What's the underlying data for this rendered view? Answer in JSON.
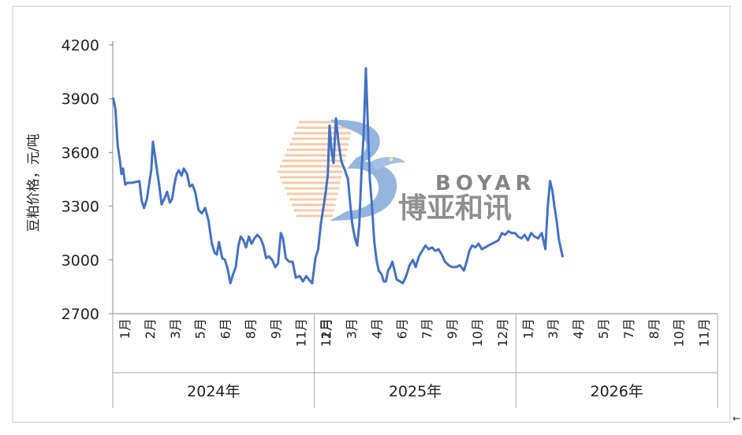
{
  "chart_data": {
    "type": "line",
    "title": "",
    "xlabel": "",
    "ylabel": "豆粕价格，元/吨",
    "ylim": [
      2700,
      4200
    ],
    "yticks": [
      2700,
      3000,
      3300,
      3600,
      3900,
      4200
    ],
    "grid": false,
    "legend": "none",
    "line_color": "#4472C4",
    "years": [
      {
        "label": "2024年",
        "months": [
          "1月",
          "2月",
          "3月",
          "5月",
          "6月",
          "8月",
          "9月",
          "11月",
          "12月"
        ]
      },
      {
        "label": "2025年",
        "months": [
          "1月",
          "3月",
          "4月",
          "6月",
          "7月",
          "9月",
          "10月",
          "12月"
        ]
      },
      {
        "label": "2026年",
        "months": [
          "1月",
          "3月",
          "4月",
          "5月",
          "7月",
          "8月",
          "10月",
          "11月"
        ]
      }
    ],
    "series": [
      {
        "points": [
          [
            "2024-01-02",
            3900
          ],
          [
            "2024-01-06",
            3840
          ],
          [
            "2024-01-10",
            3640
          ],
          [
            "2024-01-14",
            3560
          ],
          [
            "2024-01-17",
            3480
          ],
          [
            "2024-01-20",
            3510
          ],
          [
            "2024-01-24",
            3420
          ],
          [
            "2024-01-28",
            3430
          ],
          [
            "2024-02-05",
            3430
          ],
          [
            "2024-02-18",
            3440
          ],
          [
            "2024-02-22",
            3330
          ],
          [
            "2024-02-26",
            3290
          ],
          [
            "2024-03-02",
            3340
          ],
          [
            "2024-03-06",
            3420
          ],
          [
            "2024-03-10",
            3500
          ],
          [
            "2024-03-13",
            3660
          ],
          [
            "2024-03-17",
            3580
          ],
          [
            "2024-03-21",
            3490
          ],
          [
            "2024-03-25",
            3410
          ],
          [
            "2024-03-29",
            3310
          ],
          [
            "2024-04-03",
            3340
          ],
          [
            "2024-04-08",
            3380
          ],
          [
            "2024-04-13",
            3320
          ],
          [
            "2024-04-17",
            3340
          ],
          [
            "2024-04-21",
            3420
          ],
          [
            "2024-04-25",
            3480
          ],
          [
            "2024-04-29",
            3500
          ],
          [
            "2024-05-04",
            3470
          ],
          [
            "2024-05-08",
            3510
          ],
          [
            "2024-05-14",
            3480
          ],
          [
            "2024-05-19",
            3410
          ],
          [
            "2024-05-24",
            3420
          ],
          [
            "2024-05-29",
            3380
          ],
          [
            "2024-06-04",
            3280
          ],
          [
            "2024-06-10",
            3260
          ],
          [
            "2024-06-16",
            3290
          ],
          [
            "2024-06-22",
            3220
          ],
          [
            "2024-06-28",
            3090
          ],
          [
            "2024-07-03",
            3040
          ],
          [
            "2024-07-07",
            3030
          ],
          [
            "2024-07-11",
            3100
          ],
          [
            "2024-07-17",
            3010
          ],
          [
            "2024-07-22",
            3000
          ],
          [
            "2024-07-27",
            2950
          ],
          [
            "2024-08-01",
            2870
          ],
          [
            "2024-08-06",
            2920
          ],
          [
            "2024-08-11",
            2960
          ],
          [
            "2024-08-16",
            3080
          ],
          [
            "2024-08-20",
            3130
          ],
          [
            "2024-08-25",
            3110
          ],
          [
            "2024-08-30",
            3070
          ],
          [
            "2024-09-04",
            3130
          ],
          [
            "2024-09-09",
            3090
          ],
          [
            "2024-09-14",
            3120
          ],
          [
            "2024-09-19",
            3140
          ],
          [
            "2024-09-25",
            3120
          ],
          [
            "2024-09-30",
            3080
          ],
          [
            "2024-10-05",
            3010
          ],
          [
            "2024-10-10",
            3020
          ],
          [
            "2024-10-16",
            3000
          ],
          [
            "2024-10-22",
            2960
          ],
          [
            "2024-10-27",
            2980
          ],
          [
            "2024-11-01",
            3150
          ],
          [
            "2024-11-05",
            3120
          ],
          [
            "2024-11-10",
            3010
          ],
          [
            "2024-11-16",
            2990
          ],
          [
            "2024-11-22",
            2990
          ],
          [
            "2024-11-28",
            2900
          ],
          [
            "2024-12-05",
            2910
          ],
          [
            "2024-12-11",
            2880
          ],
          [
            "2024-12-17",
            2910
          ],
          [
            "2024-12-22",
            2890
          ],
          [
            "2024-12-28",
            2870
          ],
          [
            "2025-01-03",
            3010
          ],
          [
            "2025-01-08",
            3060
          ],
          [
            "2025-01-13",
            3200
          ],
          [
            "2025-01-18",
            3300
          ],
          [
            "2025-01-22",
            3380
          ],
          [
            "2025-01-26",
            3480
          ],
          [
            "2025-01-29",
            3750
          ],
          [
            "2025-02-02",
            3600
          ],
          [
            "2025-02-05",
            3540
          ],
          [
            "2025-02-09",
            3790
          ],
          [
            "2025-02-13",
            3660
          ],
          [
            "2025-02-18",
            3550
          ],
          [
            "2025-02-24",
            3500
          ],
          [
            "2025-03-01",
            3450
          ],
          [
            "2025-03-05",
            3320
          ],
          [
            "2025-03-09",
            3200
          ],
          [
            "2025-03-14",
            3120
          ],
          [
            "2025-03-18",
            3080
          ],
          [
            "2025-03-22",
            3200
          ],
          [
            "2025-03-26",
            3500
          ],
          [
            "2025-03-30",
            3700
          ],
          [
            "2025-04-03",
            4070
          ],
          [
            "2025-04-06",
            3800
          ],
          [
            "2025-04-10",
            3450
          ],
          [
            "2025-04-14",
            3300
          ],
          [
            "2025-04-18",
            3100
          ],
          [
            "2025-04-22",
            3000
          ],
          [
            "2025-04-26",
            2940
          ],
          [
            "2025-05-01",
            2920
          ],
          [
            "2025-05-05",
            2880
          ],
          [
            "2025-05-09",
            2880
          ],
          [
            "2025-05-13",
            2940
          ],
          [
            "2025-05-17",
            2960
          ],
          [
            "2025-05-21",
            2990
          ],
          [
            "2025-05-25",
            2940
          ],
          [
            "2025-05-29",
            2890
          ],
          [
            "2025-06-04",
            2880
          ],
          [
            "2025-06-09",
            2870
          ],
          [
            "2025-06-15",
            2910
          ],
          [
            "2025-06-21",
            2970
          ],
          [
            "2025-06-27",
            3000
          ],
          [
            "2025-07-02",
            2960
          ],
          [
            "2025-07-08",
            3020
          ],
          [
            "2025-07-14",
            3050
          ],
          [
            "2025-07-20",
            3080
          ],
          [
            "2025-07-26",
            3060
          ],
          [
            "2025-08-01",
            3070
          ],
          [
            "2025-08-07",
            3050
          ],
          [
            "2025-08-13",
            3060
          ],
          [
            "2025-08-19",
            3030
          ],
          [
            "2025-08-25",
            2990
          ],
          [
            "2025-09-01",
            2970
          ],
          [
            "2025-09-07",
            2960
          ],
          [
            "2025-09-14",
            2960
          ],
          [
            "2025-09-21",
            2970
          ],
          [
            "2025-09-28",
            2940
          ],
          [
            "2025-10-03",
            2990
          ],
          [
            "2025-10-08",
            3050
          ],
          [
            "2025-10-13",
            3080
          ],
          [
            "2025-10-19",
            3070
          ],
          [
            "2025-10-25",
            3090
          ],
          [
            "2025-10-31",
            3060
          ],
          [
            "2025-11-06",
            3070
          ],
          [
            "2025-11-12",
            3080
          ],
          [
            "2025-11-18",
            3090
          ],
          [
            "2025-11-24",
            3100
          ],
          [
            "2025-11-30",
            3110
          ],
          [
            "2025-12-06",
            3150
          ],
          [
            "2025-12-12",
            3140
          ],
          [
            "2025-12-18",
            3160
          ],
          [
            "2025-12-24",
            3150
          ],
          [
            "2025-12-30",
            3150
          ],
          [
            "2026-01-05",
            3130
          ],
          [
            "2026-01-11",
            3120
          ],
          [
            "2026-01-17",
            3140
          ],
          [
            "2026-01-23",
            3110
          ],
          [
            "2026-01-29",
            3150
          ],
          [
            "2026-02-04",
            3130
          ],
          [
            "2026-02-10",
            3120
          ],
          [
            "2026-02-16",
            3150
          ],
          [
            "2026-02-22",
            3060
          ],
          [
            "2026-02-26",
            3300
          ],
          [
            "2026-03-02",
            3440
          ],
          [
            "2026-03-06",
            3390
          ],
          [
            "2026-03-10",
            3300
          ],
          [
            "2026-03-14",
            3220
          ],
          [
            "2026-03-18",
            3120
          ],
          [
            "2026-03-22",
            3060
          ],
          [
            "2026-03-25",
            3020
          ]
        ]
      }
    ]
  },
  "watermark": {
    "brand": "BOYAR",
    "brand_cn": "博亚和讯",
    "primary_color": "#3D7BC4",
    "accent_color": "#F0A060"
  },
  "ui": {
    "return_glyph": "←"
  }
}
